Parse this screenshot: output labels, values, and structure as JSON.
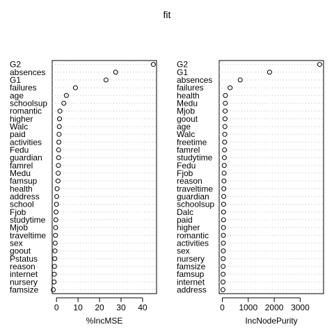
{
  "title": "fit",
  "chart_data": [
    {
      "type": "scatter",
      "xlabel": "%IncMSE",
      "xlim": [
        -2,
        46.5
      ],
      "ticks": [
        0,
        10,
        20,
        30,
        40
      ],
      "tick_labels": [
        "0",
        "10",
        "20",
        "30",
        "40"
      ],
      "categories": [
        "G2",
        "absences",
        "G1",
        "failures",
        "age",
        "schoolsup",
        "romantic",
        "higher",
        "Walc",
        "paid",
        "activities",
        "Fedu",
        "guardian",
        "famrel",
        "Medu",
        "famsup",
        "health",
        "address",
        "school",
        "Fjob",
        "studytime",
        "Mjob",
        "traveltime",
        "sex",
        "goout",
        "Pstatus",
        "reason",
        "internet",
        "nursery",
        "famsize"
      ],
      "values": [
        45,
        27.5,
        23,
        8.8,
        4.6,
        3.4,
        1.6,
        1.4,
        1.3,
        1.2,
        1.1,
        1.0,
        1.0,
        0.9,
        0.8,
        0.7,
        0.3,
        0.1,
        0.0,
        -0.2,
        -0.3,
        -0.4,
        -0.5,
        -0.6,
        -0.7,
        -0.8,
        -0.9,
        -1.0,
        -1.1,
        -1.5
      ]
    },
    {
      "type": "scatter",
      "xlabel": "IncNodePurity",
      "xlim": [
        -120,
        3900
      ],
      "ticks": [
        0,
        1000,
        2000,
        3000
      ],
      "tick_labels": [
        "0",
        "1000",
        "2000",
        "3000"
      ],
      "categories": [
        "G2",
        "G1",
        "absences",
        "failures",
        "health",
        "Medu",
        "Mjob",
        "goout",
        "age",
        "Walc",
        "freetime",
        "famrel",
        "studytime",
        "Fedu",
        "Fjob",
        "reason",
        "traveltime",
        "guardian",
        "schoolsup",
        "Dalc",
        "paid",
        "higher",
        "romantic",
        "activities",
        "sex",
        "nursery",
        "famsize",
        "famsup",
        "internet",
        "address"
      ],
      "values": [
        3750,
        1820,
        690,
        300,
        120,
        115,
        110,
        105,
        100,
        95,
        90,
        85,
        80,
        75,
        70,
        65,
        60,
        55,
        52,
        50,
        48,
        45,
        42,
        40,
        38,
        35,
        32,
        30,
        28,
        25
      ]
    }
  ]
}
